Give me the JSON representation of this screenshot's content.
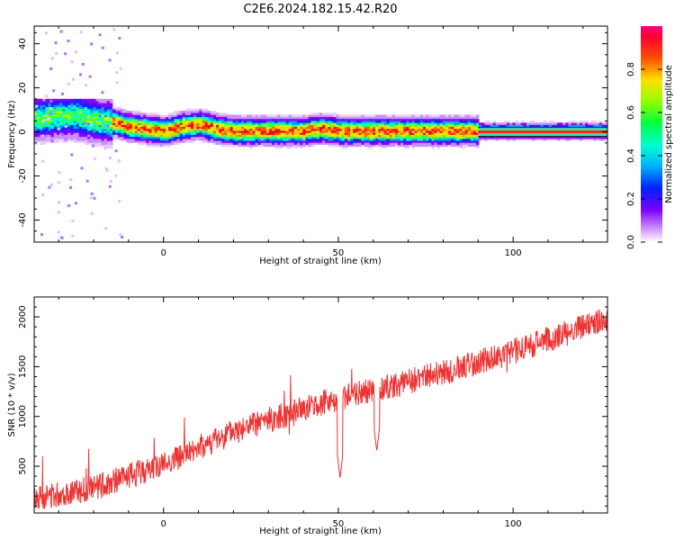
{
  "figure_title": "C2E6.2024.182.15.42.R20",
  "chart_data": [
    {
      "type": "heatmap",
      "xlabel": "Height of straight line (km)",
      "ylabel": "Frequency (Hz)",
      "xlim": [
        -37,
        127
      ],
      "ylim": [
        -50,
        48
      ],
      "xticks": [
        0,
        50,
        100
      ],
      "yticks": [
        -40,
        -20,
        0,
        20,
        40
      ],
      "colorbar": {
        "label": "Normalized spectral amplitude",
        "range": [
          0,
          1
        ],
        "ticks": [
          0.0,
          0.2,
          0.4,
          0.6,
          0.8
        ]
      },
      "ridge": {
        "description_values": "frequency (Hz) of spectral peak vs height (km)",
        "x": [
          -35,
          -30,
          -25,
          -20,
          -15,
          -10,
          -5,
          0,
          5,
          10,
          15,
          20,
          25,
          30,
          35,
          40,
          45,
          50,
          55,
          60,
          70,
          80,
          90,
          100,
          110,
          120,
          127
        ],
        "y": [
          6,
          7,
          7,
          5,
          4,
          2,
          1,
          0,
          2,
          3,
          1,
          0,
          0,
          0,
          0,
          0,
          1,
          0,
          0,
          0,
          0,
          0,
          0,
          0,
          0,
          0,
          0
        ]
      }
    },
    {
      "type": "line",
      "xlabel": "Height of straight line (km)",
      "ylabel": "SNR (10 * v/v)",
      "xlim": [
        -37,
        127
      ],
      "ylim": [
        30,
        2200
      ],
      "xticks": [
        0,
        50,
        100
      ],
      "yticks": [
        500,
        1000,
        1500,
        2000
      ],
      "color": "#ee3333",
      "series_trend": {
        "x": [
          -37,
          -20,
          0,
          20,
          40,
          50,
          60,
          80,
          100,
          127
        ],
        "y": [
          180,
          280,
          520,
          850,
          1080,
          1180,
          1260,
          1440,
          1650,
          1980
        ]
      },
      "dips": [
        {
          "x": 50.5,
          "y": 380
        },
        {
          "x": 61,
          "y": 650
        }
      ]
    }
  ]
}
